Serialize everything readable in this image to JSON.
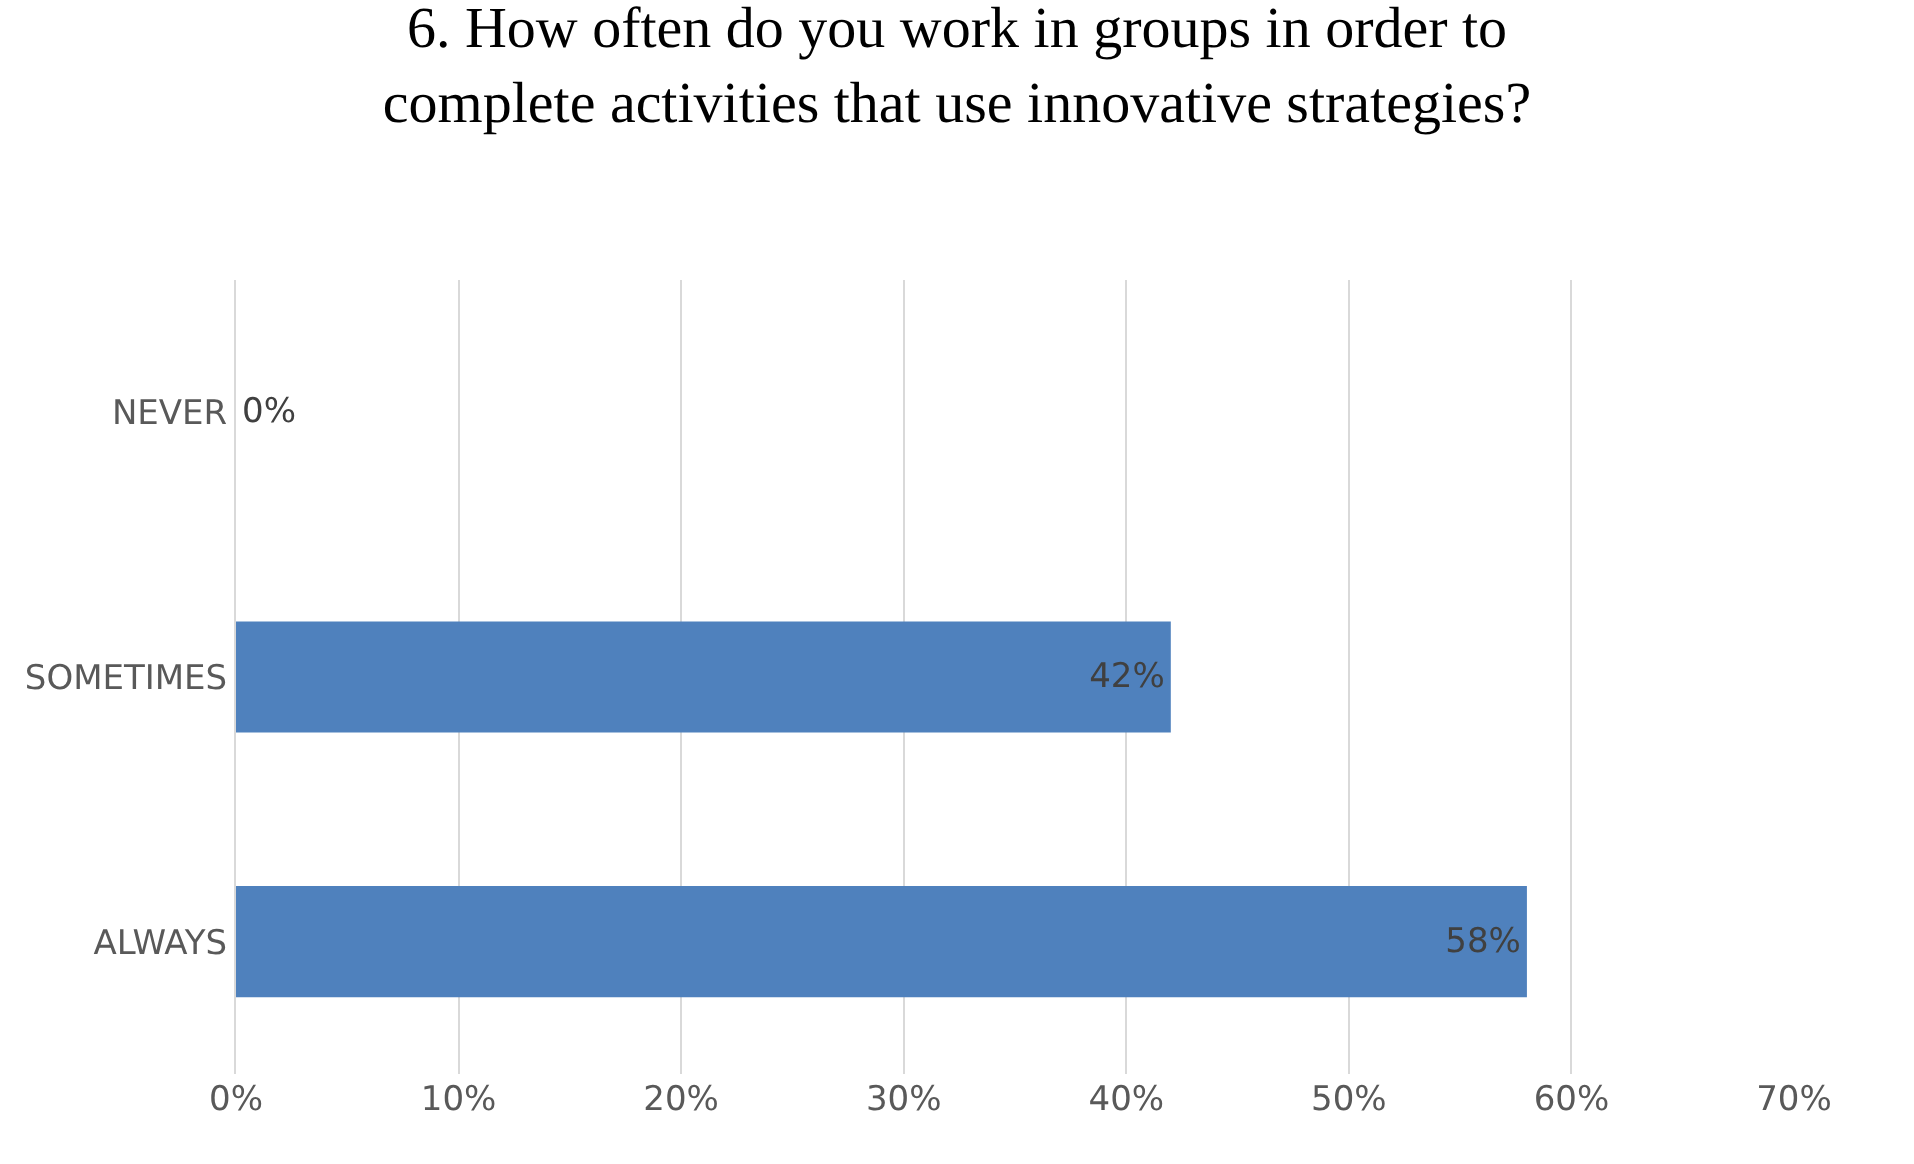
{
  "chart_data": {
    "type": "bar",
    "orientation": "horizontal",
    "title": "6. How often do you work in groups in order to\ncomplete activities that use innovative strategies?",
    "categories": [
      "NEVER",
      "SOMETIMES",
      "ALWAYS"
    ],
    "values": [
      0,
      42,
      58
    ],
    "value_labels": [
      "0%",
      "42%",
      "58%"
    ],
    "color": "#4f81bd",
    "xlim": [
      0,
      70
    ],
    "xticks": [
      {
        "value": 0,
        "label": "0%"
      },
      {
        "value": 10,
        "label": "10%"
      },
      {
        "value": 20,
        "label": "20%"
      },
      {
        "value": 30,
        "label": "30%"
      },
      {
        "value": 40,
        "label": "40%"
      },
      {
        "value": 50,
        "label": "50%"
      },
      {
        "value": 60,
        "label": "60%"
      },
      {
        "value": 70,
        "label": "70%"
      }
    ],
    "grid": "x"
  }
}
